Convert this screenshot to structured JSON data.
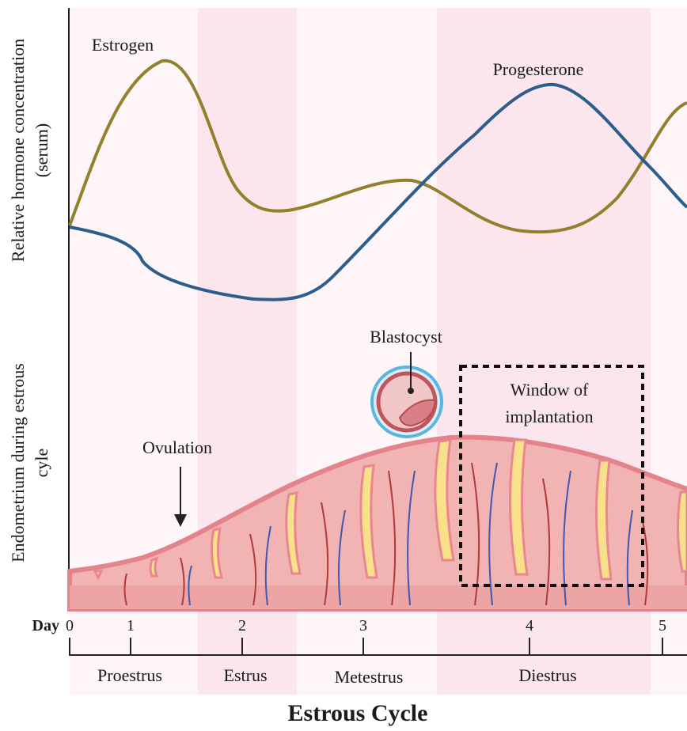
{
  "y_axis_labels": {
    "top": [
      "Relative hormone concentration",
      "(serum)"
    ],
    "bottom": [
      "Endometrium during estrous",
      "cyle"
    ]
  },
  "curves": [
    {
      "label": "Estrogen"
    },
    {
      "label": "Progesterone"
    }
  ],
  "annotations": {
    "blastocyst": "Blastocyst",
    "window": [
      "Window of",
      "implantation"
    ],
    "ovulation": "Ovulation"
  },
  "axis": {
    "day_label": "Day",
    "ticks": [
      "0",
      "1",
      "2",
      "3",
      "4",
      "5"
    ],
    "phases": [
      "Proestrus",
      "Estrus",
      "Metestrus",
      "Diestrus"
    ],
    "title": "Estrous Cycle"
  }
}
